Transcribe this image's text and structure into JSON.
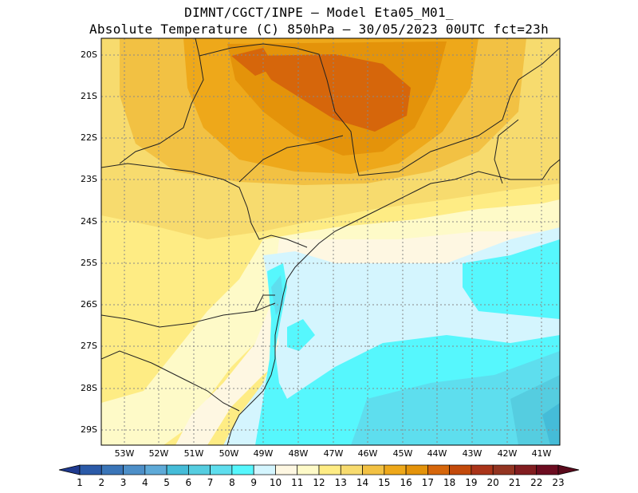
{
  "title_line1": "DIMNT/CGCT/INPE –  Model Eta05_M01_",
  "title_line2": "Absolute Temperature (C) 850hPa –  30/05/2023 00UTC fct=23h",
  "map": {
    "variable": "Absolute Temperature (C) 850hPa",
    "lat_labels": [
      "20S",
      "21S",
      "22S",
      "23S",
      "24S",
      "25S",
      "26S",
      "27S",
      "28S",
      "29S"
    ],
    "lon_labels": [
      "53W",
      "52W",
      "51W",
      "50W",
      "49W",
      "48W",
      "47W",
      "46W",
      "45W",
      "44W",
      "43W",
      "42W",
      "41W"
    ],
    "colorbar_labels": [
      "1",
      "2",
      "3",
      "4",
      "5",
      "6",
      "7",
      "8",
      "9",
      "10",
      "11",
      "12",
      "13",
      "14",
      "15",
      "16",
      "17",
      "18",
      "19",
      "20",
      "21",
      "22",
      "23"
    ],
    "colorbar_colors": [
      "#24439a",
      "#2b5aa8",
      "#3a75b8",
      "#4d8fc8",
      "#5eaad8",
      "#45bcd8",
      "#55cde0",
      "#5edeee",
      "#56f7fd",
      "#d4f5fe",
      "#fef7e2",
      "#fefac8",
      "#feec84",
      "#f7db6e",
      "#f2c143",
      "#eea81a",
      "#e4930a",
      "#d6660b",
      "#c34a0b",
      "#aa3419",
      "#933421",
      "#821d20",
      "#6c0c20"
    ]
  }
}
